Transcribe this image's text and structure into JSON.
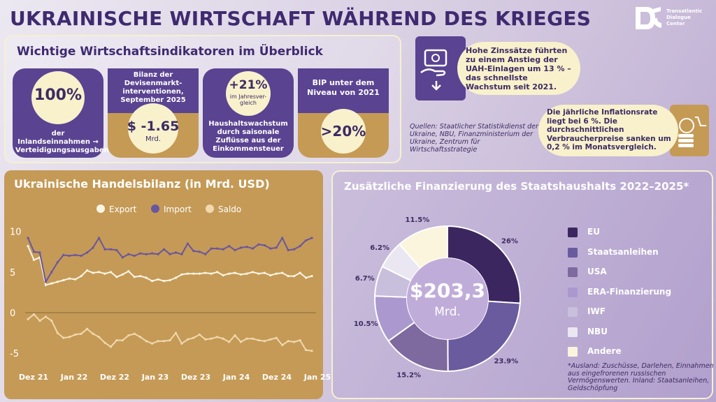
{
  "title": "UKRAINISCHE WIRTSCHAFT WÄHREND DES KRIEGES",
  "logo": {
    "line1": "Transatlantic",
    "line2": "Dialogue",
    "line3": "Center"
  },
  "indicators": {
    "title": "Wichtige Wirtschaftsindikatoren im Überblick",
    "card1": {
      "value": "100%",
      "text": "der Inlandseinnahmen → Verteidigungsausgaben"
    },
    "card2": {
      "header": "Bilanz der Devisenmarkt-interventionen, September 2025",
      "value": "$ -1.65",
      "unit": "Mrd."
    },
    "card3": {
      "value": "+21%",
      "sub": "im Jahresver-gleich",
      "text": "Haushaltswachstum durch saisonale Zuflüsse aus der Einkommensteuer"
    },
    "card4": {
      "header": "BIP unter dem Niveau von 2021",
      "value": ">20%"
    }
  },
  "interest_text": "Hohe Zinssätze führten zu einem Anstieg der UAH-Einlagen um 13 % – das schnellste Wachstum seit 2021.",
  "sources": "Quellen: Staatlicher Statistikdienst der Ukraine, NBU, Finanzministerium der Ukraine, Zentrum für Wirtschaftsstrategie",
  "inflation_text": "Die jährliche Inflationsrate liegt bei 6 %. Die durchschnittlichen Verbraucherpreise sanken um 0,2 % im Monatsvergleich.",
  "colors": {
    "purple_dark": "#3d2b63",
    "gold": "#c49a56",
    "cream": "#f8f1cc",
    "import": "#6a55a0"
  },
  "chart_data": [
    {
      "type": "line",
      "title": "Ukrainische Handelsbilanz (in Mrd. USD)",
      "x_tick_labels": [
        "Dez 21",
        "Jan 22",
        "Dez 22",
        "Jan 23",
        "Dez 23",
        "Jan 24",
        "Dez 24",
        "Jan 25"
      ],
      "y_ticks": [
        10,
        5,
        0,
        -5
      ],
      "ylim": [
        -5.5,
        11
      ],
      "legend_position": "top",
      "series": [
        {
          "name": "Export",
          "color": "#fbf5e6",
          "values": [
            8.2,
            6.5,
            6.8,
            3.4,
            3.6,
            3.8,
            4.0,
            4.2,
            4.1,
            4.5,
            5.2,
            4.9,
            5.0,
            4.8,
            5.0,
            4.4,
            4.7,
            5.1,
            4.4,
            4.5,
            4.3,
            3.9,
            4.1,
            3.9,
            4.0,
            4.3,
            4.7,
            4.8,
            4.8,
            4.8,
            4.9,
            4.8,
            5.0,
            4.6,
            4.8,
            4.9,
            4.7,
            4.8,
            5.0,
            4.8,
            4.9,
            4.6,
            4.8,
            4.9,
            4.5,
            4.5,
            4.9,
            4.3,
            4.5
          ]
        },
        {
          "name": "Import",
          "color": "#6a55a0",
          "values": [
            9.2,
            7.5,
            7.4,
            3.8,
            5.0,
            6.2,
            7.1,
            7.0,
            7.1,
            7.0,
            7.4,
            8.0,
            9.2,
            7.8,
            7.8,
            7.7,
            6.8,
            7.2,
            7.0,
            7.3,
            7.2,
            7.3,
            7.2,
            7.8,
            7.2,
            7.4,
            7.2,
            8.5,
            7.6,
            7.5,
            7.2,
            7.9,
            7.9,
            7.8,
            8.2,
            7.7,
            8.0,
            8.1,
            7.9,
            8.4,
            8.3,
            7.9,
            8.0,
            9.2,
            7.7,
            7.8,
            8.2,
            8.9,
            9.2
          ]
        },
        {
          "name": "Saldo",
          "color": "#f1d8ae",
          "values": [
            -0.8,
            -0.2,
            -1.0,
            -0.5,
            -1.0,
            -2.5,
            -3.1,
            -3.0,
            -2.7,
            -2.6,
            -2.0,
            -2.6,
            -3.0,
            -3.7,
            -4.2,
            -3.4,
            -3.4,
            -2.8,
            -2.6,
            -3.0,
            -3.5,
            -3.8,
            -3.5,
            -3.5,
            -3.4,
            -2.5,
            -3.8,
            -3.3,
            -3.1,
            -2.7,
            -3.3,
            -3.2,
            -3.0,
            -3.2,
            -3.6,
            -2.8,
            -3.6,
            -3.2,
            -3.2,
            -3.4,
            -3.5,
            -3.3,
            -3.1,
            -4.0,
            -3.5,
            -3.6,
            -3.4,
            -4.6,
            -4.7
          ]
        }
      ]
    },
    {
      "type": "pie",
      "title": "Zusätzliche Finanzierung des Staatshaushalts 2022–2025*",
      "center_value": "$203,3",
      "center_unit": "Mrd.",
      "slices": [
        {
          "name": "EU",
          "value": 26,
          "label": "26%",
          "color": "#3b2660"
        },
        {
          "name": "Staatsanleihen",
          "value": 23.9,
          "label": "23.9%",
          "color": "#6a5a9e"
        },
        {
          "name": "USA",
          "value": 15.2,
          "label": "15.2%",
          "color": "#7e6a9e"
        },
        {
          "name": "ERA-Finanzierung",
          "value": 10.5,
          "label": "10.5%",
          "color": "#ab98cf"
        },
        {
          "name": "IWF",
          "value": 6.7,
          "label": "6.7%",
          "color": "#c8bfdc"
        },
        {
          "name": "NBU",
          "value": 6.2,
          "label": "6.2%",
          "color": "#ebe7f2"
        },
        {
          "name": "Andere",
          "value": 11.5,
          "label": "11.5%",
          "color": "#fbf5dd"
        }
      ],
      "footnote": "*Ausland: Zuschüsse, Darlehen, Einnahmen aus eingefrorenen russischen Vermögenswerten. Inland: Staatsanleihen, Geldschöpfung"
    }
  ]
}
